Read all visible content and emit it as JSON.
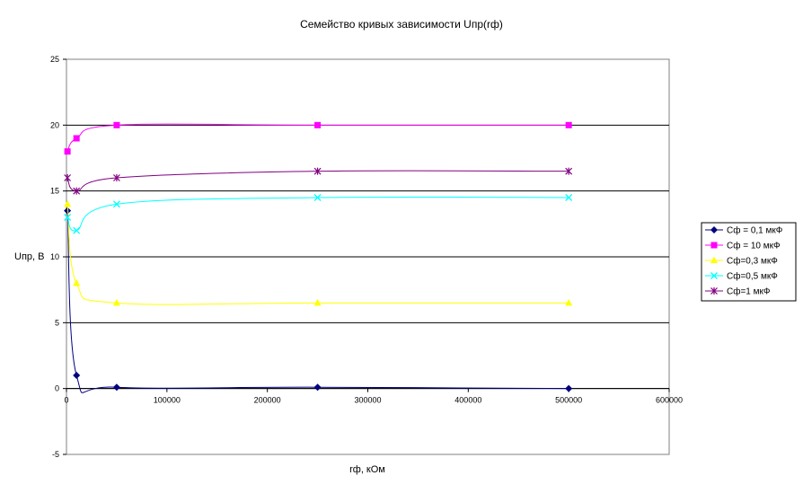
{
  "chart_data": {
    "type": "line",
    "title": "Семейство кривых зависимости Uпр(rф)",
    "xlabel": "rф, кОм",
    "ylabel": "Uпр, В",
    "xlim": [
      0,
      600000
    ],
    "ylim": [
      -5,
      25
    ],
    "xticks": [
      0,
      100000,
      200000,
      300000,
      400000,
      500000,
      600000
    ],
    "yticks": [
      -5,
      0,
      5,
      10,
      15,
      20,
      25
    ],
    "grid": "horizontal",
    "legend_position": "right",
    "smoothed": true,
    "series": [
      {
        "name": "Сф = 0,1 мкФ",
        "color": "#000080",
        "marker": "diamond",
        "x": [
          1000,
          10000,
          50000,
          250000,
          500000
        ],
        "y": [
          13.5,
          1,
          0.1,
          0.1,
          0
        ]
      },
      {
        "name": "Сф = 10 мкФ",
        "color": "#ff00ff",
        "marker": "square",
        "x": [
          1000,
          10000,
          50000,
          250000,
          500000
        ],
        "y": [
          18,
          19,
          20,
          20,
          20
        ]
      },
      {
        "name": "Сф=0,3 мкФ",
        "color": "#ffff00",
        "marker": "triangle",
        "x": [
          1000,
          10000,
          50000,
          250000,
          500000
        ],
        "y": [
          14,
          8,
          6.5,
          6.5,
          6.5
        ]
      },
      {
        "name": "Сф=0,5 мкФ",
        "color": "#00ffff",
        "marker": "x",
        "x": [
          1000,
          10000,
          50000,
          250000,
          500000
        ],
        "y": [
          13,
          12,
          14,
          14.5,
          14.5
        ]
      },
      {
        "name": "Сф=1 мкФ",
        "color": "#800080",
        "marker": "star",
        "x": [
          1000,
          10000,
          50000,
          250000,
          500000
        ],
        "y": [
          16,
          15,
          16,
          16.5,
          16.5
        ]
      }
    ]
  }
}
